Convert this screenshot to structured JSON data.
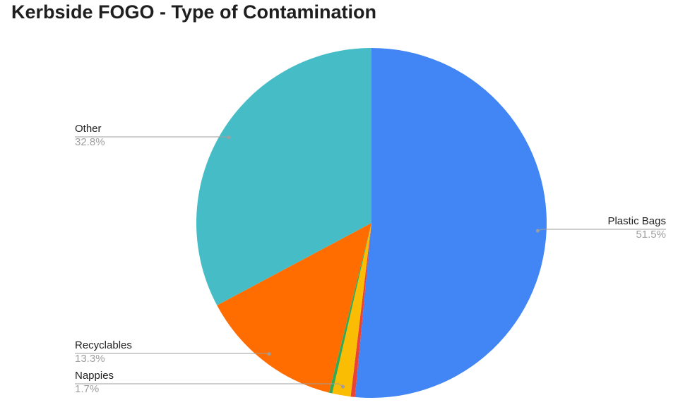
{
  "chart_data": {
    "type": "pie",
    "title": "Kerbside FOGO - Type of Contamination",
    "start_angle_deg": 0,
    "direction": "clockwise",
    "legend": "none",
    "slices": [
      {
        "label": "Plastic Bags",
        "value": 51.5,
        "value_label": "51.5%",
        "color": "#4285f4",
        "show_label": true
      },
      {
        "label": "",
        "value": 0.4,
        "value_label": "",
        "color": "#ea4335",
        "show_label": false
      },
      {
        "label": "Nappies",
        "value": 1.7,
        "value_label": "1.7%",
        "color": "#fbbc04",
        "show_label": true
      },
      {
        "label": "",
        "value": 0.3,
        "value_label": "",
        "color": "#34a853",
        "show_label": false
      },
      {
        "label": "Recyclables",
        "value": 13.3,
        "value_label": "13.3%",
        "color": "#ff6d01",
        "show_label": true
      },
      {
        "label": "Other",
        "value": 32.8,
        "value_label": "32.8%",
        "color": "#46bdc6",
        "show_label": true
      }
    ]
  }
}
